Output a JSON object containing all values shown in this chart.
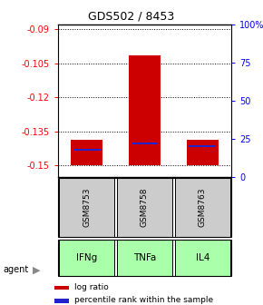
{
  "title": "GDS502 / 8453",
  "samples": [
    "GSM8753",
    "GSM8758",
    "GSM8763"
  ],
  "agents": [
    "IFNg",
    "TNFa",
    "IL4"
  ],
  "log_ratios": [
    -0.1385,
    -0.1015,
    -0.1385
  ],
  "percentile_ranks": [
    18,
    22,
    20
  ],
  "ylim_left": [
    -0.155,
    -0.088
  ],
  "yticks_left": [
    -0.15,
    -0.135,
    -0.12,
    -0.105,
    -0.09
  ],
  "ytick_labels_left": [
    "-0.15",
    "-0.135",
    "-0.12",
    "-0.105",
    "-0.09"
  ],
  "ylim_right": [
    0,
    100
  ],
  "yticks_right": [
    0,
    25,
    50,
    75,
    100
  ],
  "ytick_labels_right": [
    "0",
    "25",
    "50",
    "75",
    "100%"
  ],
  "bar_color": "#cc0000",
  "percentile_color": "#2222cc",
  "sample_box_color": "#cccccc",
  "agent_color": "#aaffaa",
  "legend_items": [
    "log ratio",
    "percentile rank within the sample"
  ],
  "legend_colors": [
    "#cc0000",
    "#2222cc"
  ],
  "bar_width": 0.55,
  "baseline": -0.15
}
